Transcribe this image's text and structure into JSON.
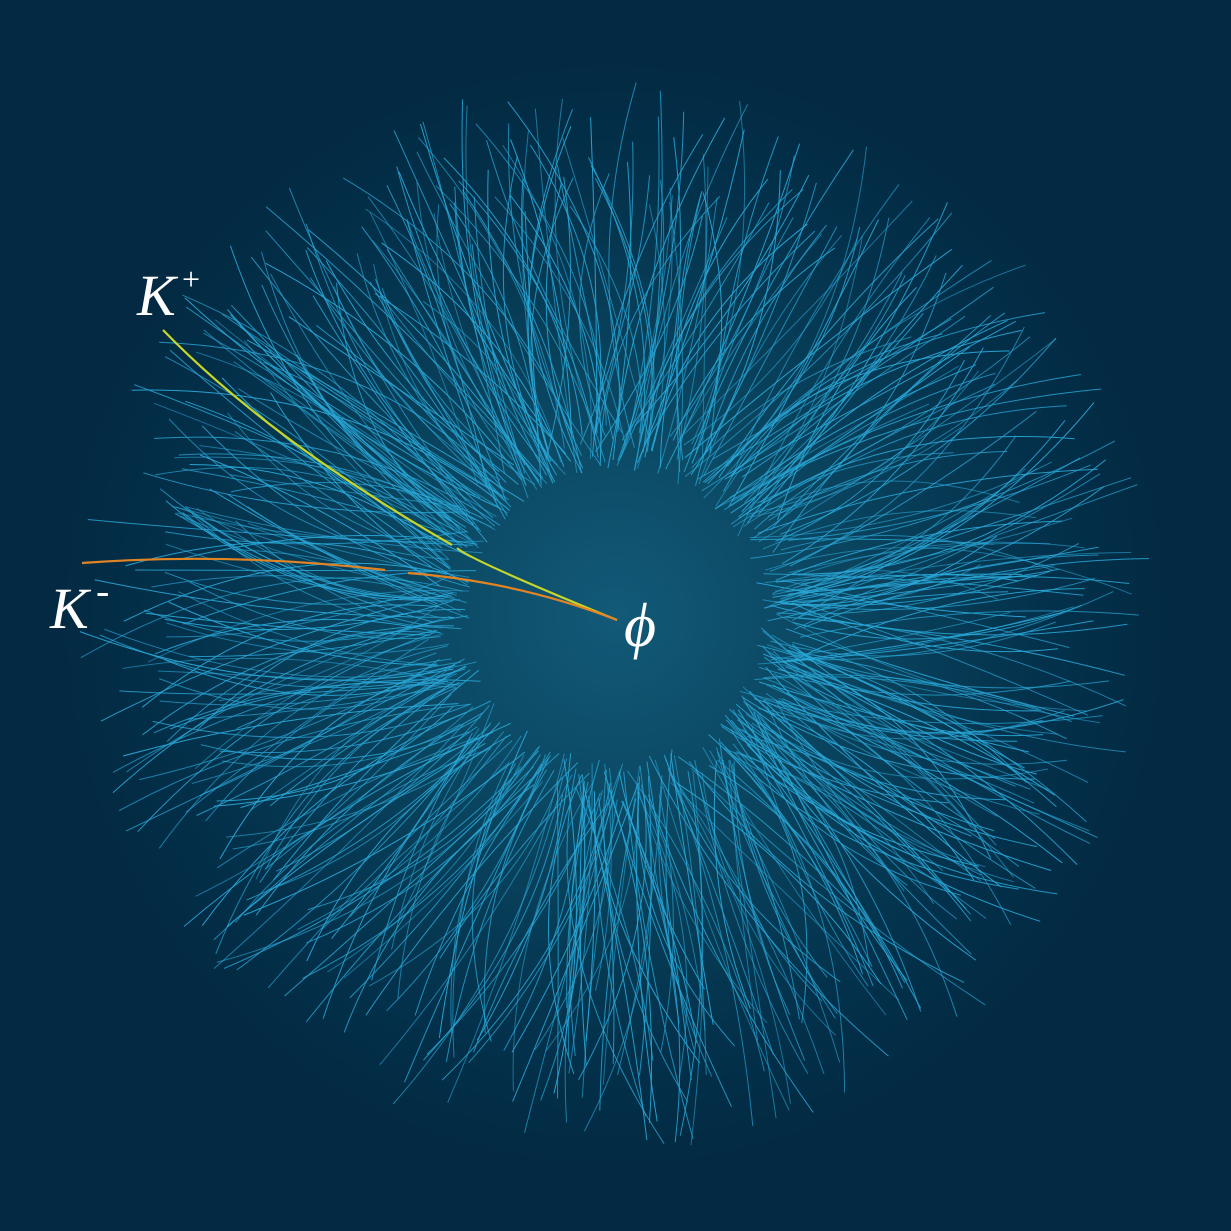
{
  "labels": [
    {
      "base": "K",
      "sup": "+"
    },
    {
      "base": "K",
      "sup": "-"
    },
    {
      "symbol": "ϕ"
    }
  ]
}
